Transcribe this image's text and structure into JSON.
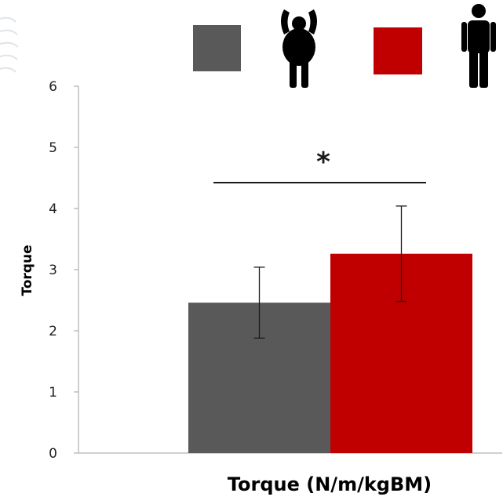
{
  "chart_data": {
    "type": "bar",
    "title": "",
    "xlabel": "Torque (N/m/kgBM)",
    "ylabel": "Torque",
    "ylim": [
      0,
      6
    ],
    "yticks": [
      0,
      1,
      2,
      3,
      4,
      5,
      6
    ],
    "categories": [
      "Torque (N/m/kgBM)"
    ],
    "grid": false,
    "legend_placement": "top",
    "series": [
      {
        "values": [
          2.46
        ],
        "error": [
          0.58
        ],
        "color": "#595959",
        "legend_icon": "obese-person-icon"
      },
      {
        "values": [
          3.26
        ],
        "error": [
          0.78
        ],
        "color": "#c00000",
        "legend_icon": "lean-person-icon"
      }
    ],
    "annotations": [
      {
        "text": "*",
        "between_series": [
          0,
          1
        ]
      }
    ]
  }
}
